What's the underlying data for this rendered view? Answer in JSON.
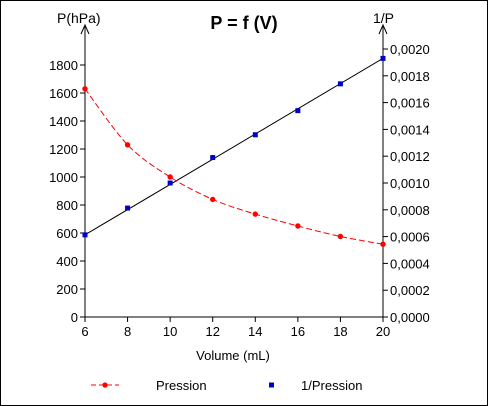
{
  "chart_data": {
    "type": "line",
    "title": "P = f (V)",
    "xlabel": "Volume (mL)",
    "ylabel_left": "P(hPa)",
    "ylabel_right": "1/P",
    "x": [
      6,
      8,
      10,
      12,
      14,
      16,
      18,
      20
    ],
    "x_ticks": [
      "6",
      "8",
      "10",
      "12",
      "14",
      "16",
      "18",
      "20"
    ],
    "xlim": [
      6,
      20
    ],
    "ylim_left": [
      0,
      1800
    ],
    "ylim_right": [
      0,
      0.002
    ],
    "y_ticks_left": [
      "0",
      "200",
      "400",
      "600",
      "800",
      "1000",
      "1200",
      "1400",
      "1600",
      "1800"
    ],
    "y_ticks_right": [
      "0,0000",
      "0,0002",
      "0,0004",
      "0,0006",
      "0,0008",
      "0,0010",
      "0,0012",
      "0,0014",
      "0,0016",
      "0,0018",
      "0,0020"
    ],
    "series": [
      {
        "name": "Pression",
        "axis": "left",
        "values": [
          1630,
          1230,
          1000,
          840,
          735,
          650,
          575,
          520
        ],
        "color": "#ff0000",
        "marker": "circle",
        "line": "dashed"
      },
      {
        "name": "1/Pression",
        "axis": "right",
        "values": [
          0.000613,
          0.000813,
          0.001,
          0.00119,
          0.00136,
          0.00154,
          0.00174,
          0.00193
        ],
        "color": "#0000cc",
        "marker": "square",
        "line": "none"
      }
    ],
    "fit_line": {
      "axis": "right",
      "x": [
        6,
        20
      ],
      "values": [
        0.000613,
        0.00193
      ],
      "color": "#000000"
    },
    "legend_position": "bottom",
    "grid": false
  }
}
